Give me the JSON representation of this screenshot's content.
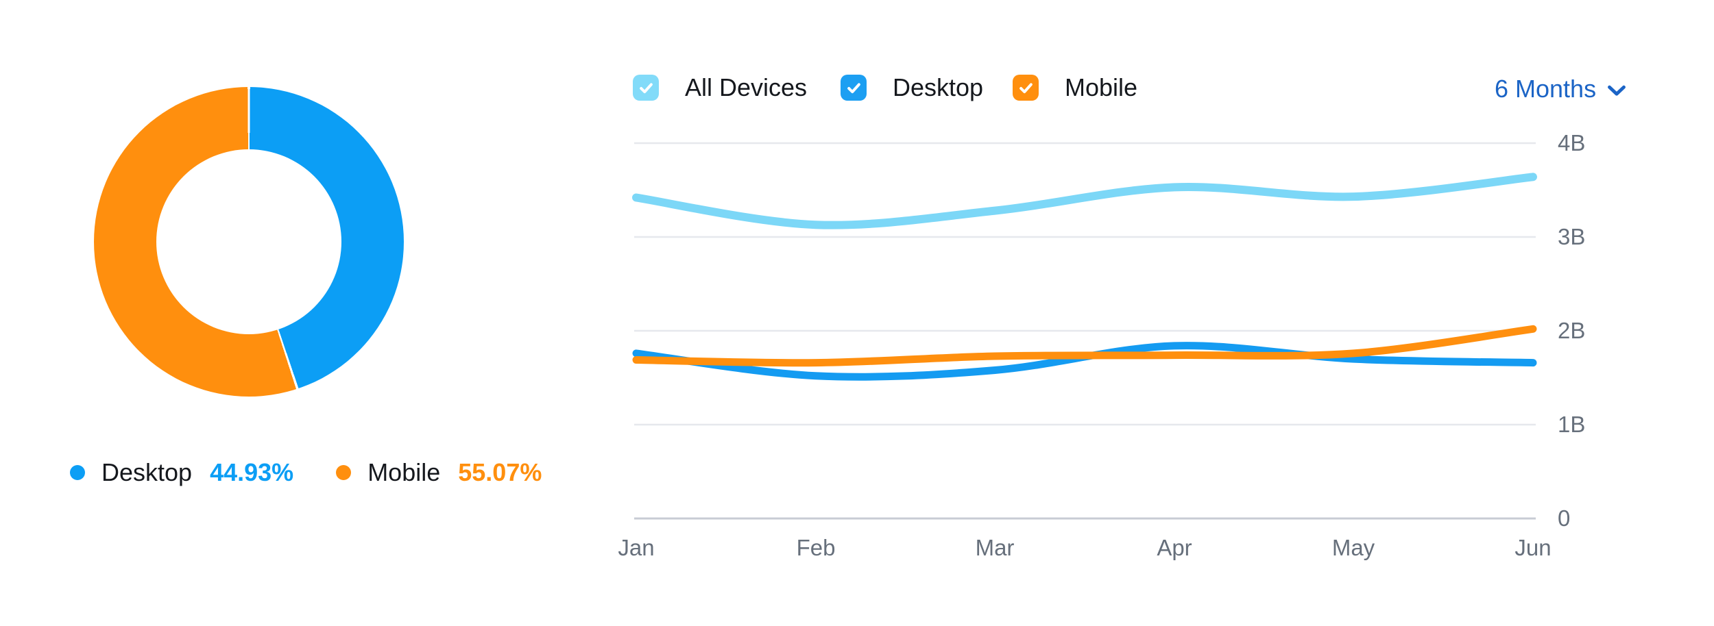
{
  "page": {
    "background": "#ffffff"
  },
  "donut": {
    "legend": [
      {
        "label": "Desktop",
        "value": "44.93%",
        "color": "#0C9EF5"
      },
      {
        "label": "Mobile",
        "value": "55.07%",
        "color": "#FF8F0E"
      }
    ]
  },
  "line_chart": {
    "legend_checkboxes": [
      {
        "label": "All Devices",
        "checked": true,
        "color": "#82DBF9"
      },
      {
        "label": "Desktop",
        "checked": true,
        "color": "#1C9FF2"
      },
      {
        "label": "Mobile",
        "checked": true,
        "color": "#FF8F0E"
      }
    ],
    "period_selector": {
      "label": "6 Months",
      "color": "#1B64C6"
    },
    "y_ticks": [
      "4B",
      "3B",
      "2B",
      "1B",
      "0"
    ],
    "x_ticks": [
      "Jan",
      "Feb",
      "Mar",
      "Apr",
      "May",
      "Jun"
    ]
  },
  "colors": {
    "all_devices": "#7CD7F7",
    "desktop": "#0C9EF5",
    "mobile": "#FF8F0E",
    "link_blue": "#1B64C6",
    "gridline": "#E6E8ED",
    "zero_line": "#C8CCD4",
    "tick_text": "#666F7B",
    "label_text": "#15181D"
  },
  "chart_data": [
    {
      "type": "pie",
      "donut": true,
      "start": "top",
      "direction": "clockwise",
      "slices": [
        {
          "label": "Desktop",
          "value": 44.93,
          "color": "#0C9EF5"
        },
        {
          "label": "Mobile",
          "value": 55.07,
          "color": "#FF8F0E"
        }
      ]
    },
    {
      "type": "line",
      "x": [
        "Jan",
        "Feb",
        "Mar",
        "Apr",
        "May",
        "Jun"
      ],
      "series": [
        {
          "name": "All Devices",
          "color": "#7CD7F7",
          "values": [
            3.42,
            3.13,
            3.28,
            3.53,
            3.43,
            3.64
          ]
        },
        {
          "name": "Desktop",
          "color": "#149BF1",
          "values": [
            1.76,
            1.52,
            1.58,
            1.84,
            1.7,
            1.66
          ]
        },
        {
          "name": "Mobile",
          "color": "#FF8F0E",
          "values": [
            1.69,
            1.66,
            1.73,
            1.74,
            1.76,
            2.02
          ]
        }
      ],
      "unit": "B",
      "ylim": [
        0,
        4
      ],
      "yticks": [
        0,
        1,
        2,
        3,
        4
      ],
      "grid": "horizontal",
      "legend_position": "top",
      "smoothing": "spline"
    }
  ]
}
